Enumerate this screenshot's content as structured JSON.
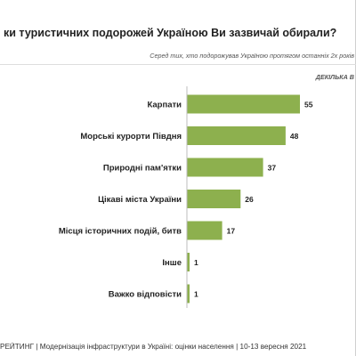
{
  "header": {
    "title": "ки туристичних подорожей Україною Ви зазвичай обирали?",
    "subtitle": "Серед тих, хто подорожував Україною протягом останніх 2х років",
    "note": "ДЕКІЛЬКА В"
  },
  "footer": {
    "text": "РЕЙТИНГ | Модернізація інфраструктури в Україні: оцінки населення | 10-13 вересня 2021"
  },
  "colors": {
    "bar": "#8db04e",
    "axis": "#bdbdbd"
  },
  "chart_data": {
    "type": "bar",
    "orientation": "horizontal",
    "categories": [
      "Карпати",
      "Морські курорти Півдня",
      "Природні пам'ятки",
      "Цікаві міста України",
      "Місця історичних подій, битв",
      "Інше",
      "Важко відповісти"
    ],
    "values": [
      55,
      48,
      37,
      26,
      17,
      1,
      1
    ],
    "xlim": [
      0,
      60
    ],
    "grid": false,
    "legend": "none"
  }
}
